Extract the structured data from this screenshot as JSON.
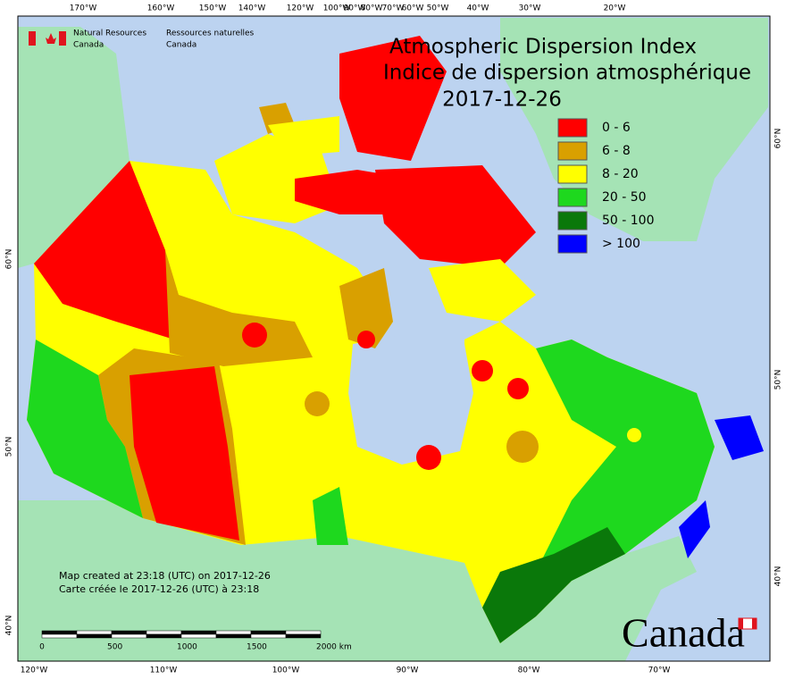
{
  "header": {
    "agency_en": [
      "Natural Resources",
      "Canada"
    ],
    "agency_fr": [
      "Ressources naturelles",
      "Canada"
    ]
  },
  "title": [
    "Atmospheric Dispersion Index",
    "Indice de dispersion atmosphérique",
    "2017-12-26"
  ],
  "legend": [
    {
      "label": "0 - 6",
      "color": "#ff0000"
    },
    {
      "label": "6 - 8",
      "color": "#d9a000"
    },
    {
      "label": "8 - 20",
      "color": "#ffff00"
    },
    {
      "label": "20 - 50",
      "color": "#1ed81e"
    },
    {
      "label": "50 - 100",
      "color": "#0a780a"
    },
    {
      "label": "> 100",
      "color": "#0000ff"
    }
  ],
  "top_longitudes": [
    "170°W",
    "160°W",
    "150°W",
    "140°W",
    "120°W",
    "100°W",
    "90°W",
    "80°W",
    "70°W",
    "60°W",
    "50°W",
    "40°W",
    "30°W",
    "20°W"
  ],
  "bottom_longitudes": [
    "120°W",
    "110°W",
    "100°W",
    "90°W",
    "80°W",
    "70°W"
  ],
  "left_latitudes": [
    "60°N",
    "50°N",
    "40°N"
  ],
  "right_latitudes": [
    "60°N",
    "50°N",
    "40°N"
  ],
  "credits": [
    "Map created at 23:18 (UTC) on 2017-12-26",
    "Carte créée le 2017-12-26 (UTC) à 23:18"
  ],
  "scale_labels": [
    "0",
    "500",
    "1000",
    "1500",
    "2000 km"
  ],
  "wordmark": "Canada"
}
